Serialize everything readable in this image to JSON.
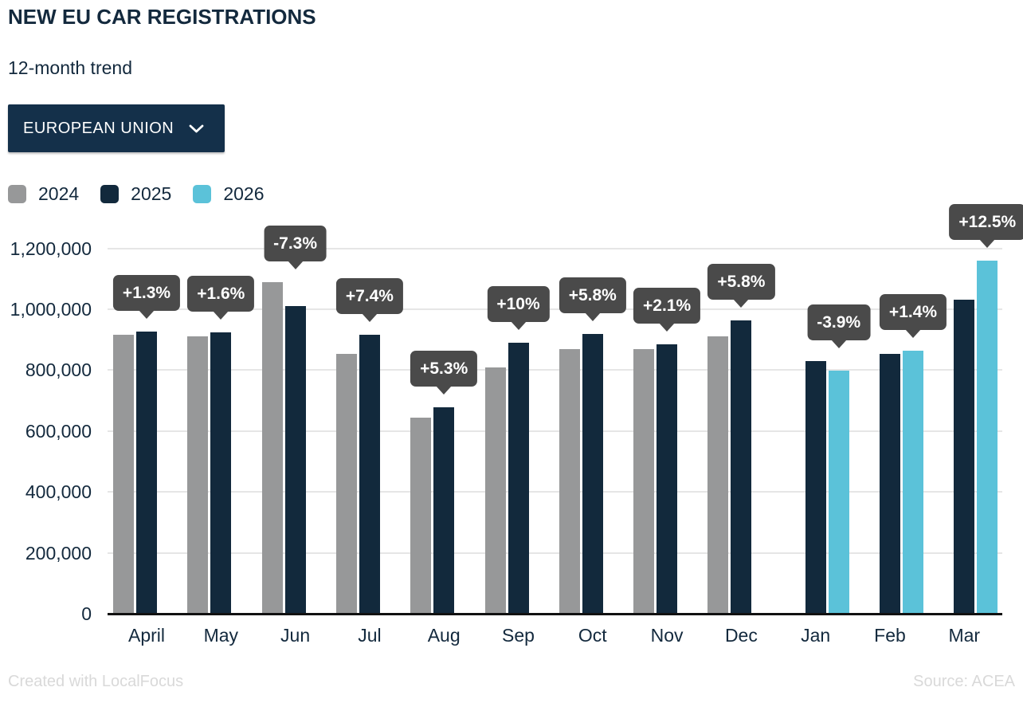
{
  "header": {
    "title": "NEW EU CAR REGISTRATIONS",
    "subtitle": "12-month trend",
    "region_selector": {
      "label": "EUROPEAN UNION",
      "icon": "chevron-down-icon"
    }
  },
  "legend": [
    {
      "label": "2024",
      "color": "#979899"
    },
    {
      "label": "2025",
      "color": "#12293c"
    },
    {
      "label": "2026",
      "color": "#5bc2d9"
    }
  ],
  "chart_data": {
    "type": "bar",
    "title": "NEW EU CAR REGISTRATIONS",
    "subtitle": "12-month trend",
    "categories": [
      "April",
      "May",
      "Jun",
      "Jul",
      "Aug",
      "Sep",
      "Oct",
      "Nov",
      "Dec",
      "Jan",
      "Feb",
      "Mar"
    ],
    "series": [
      {
        "name": "2024",
        "color": "#979899",
        "values": [
          916000,
          910000,
          1090000,
          853000,
          643000,
          810000,
          868000,
          868000,
          910000,
          null,
          null,
          null
        ]
      },
      {
        "name": "2025",
        "color": "#12293c",
        "values": [
          928000,
          925000,
          1011000,
          916000,
          677000,
          891000,
          918000,
          886000,
          963000,
          831000,
          853000,
          1031000
        ]
      },
      {
        "name": "2026",
        "color": "#5bc2d9",
        "values": [
          null,
          null,
          null,
          null,
          null,
          null,
          null,
          null,
          null,
          799000,
          865000,
          1160000
        ]
      }
    ],
    "change_labels": [
      "+1.3%",
      "+1.6%",
      "-7.3%",
      "+7.4%",
      "+5.3%",
      "+10%",
      "+5.8%",
      "+2.1%",
      "+5.8%",
      "-3.9%",
      "+1.4%",
      "+12.5%"
    ],
    "yticks": [
      0,
      200000,
      400000,
      600000,
      800000,
      1000000,
      1200000
    ],
    "ytick_labels": [
      "0",
      "200,000",
      "400,000",
      "600,000",
      "800,000",
      "1,000,000",
      "1,200,000"
    ],
    "ylim": [
      0,
      1200000
    ],
    "grid": true,
    "legend_position": "top-left"
  },
  "colors": {
    "text": "#13293d",
    "grid": "#e6e6e6",
    "axis": "#111111",
    "badge_bg": "#4a4a4a",
    "badge_text": "#ffffff",
    "dropdown_bg": "#14304a",
    "dropdown_text": "#ffffff",
    "footer_text": "#d9d9d9"
  },
  "footer": {
    "left": "Created with LocalFocus",
    "right": "Source: ACEA"
  }
}
